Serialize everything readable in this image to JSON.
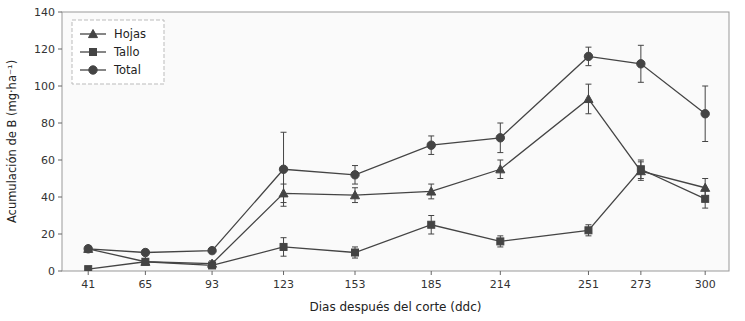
{
  "chart_data": {
    "type": "line",
    "x": [
      41,
      65,
      93,
      123,
      153,
      185,
      214,
      251,
      273,
      300
    ],
    "xlabel": "Dias después del corte (ddc)",
    "ylabel": "Acumulación de B (mg·ha⁻¹)",
    "xlim": [
      30,
      310
    ],
    "xticks": [
      41,
      65,
      93,
      123,
      153,
      185,
      214,
      251,
      273,
      300
    ],
    "ylim": [
      0,
      140
    ],
    "yticks": [
      0,
      20,
      40,
      60,
      80,
      100,
      120,
      140
    ],
    "grid": false,
    "legend": "upper left",
    "series": [
      {
        "name": "Hojas",
        "color": "#444444",
        "marker": "triangle",
        "line_style": "solid",
        "values": [
          12,
          5,
          4,
          42,
          41,
          43,
          55,
          93,
          54,
          45
        ],
        "errors": [
          1.5,
          1.5,
          1.5,
          5,
          4,
          4,
          5,
          8,
          5,
          5
        ]
      },
      {
        "name": "Tallo",
        "color": "#444444",
        "marker": "square",
        "line_style": "solid",
        "values": [
          1,
          5,
          3,
          13,
          10,
          25,
          16,
          22,
          55,
          39
        ],
        "errors": [
          1,
          1,
          1,
          5,
          3,
          5,
          3,
          3,
          5,
          5
        ]
      },
      {
        "name": "Total",
        "color": "#444444",
        "marker": "circle",
        "line_style": "solid",
        "values": [
          12,
          10,
          11,
          55,
          52,
          68,
          72,
          116,
          112,
          85
        ],
        "errors": [
          1.5,
          1.5,
          1.5,
          20,
          5,
          5,
          8,
          5,
          10,
          15
        ]
      }
    ]
  }
}
